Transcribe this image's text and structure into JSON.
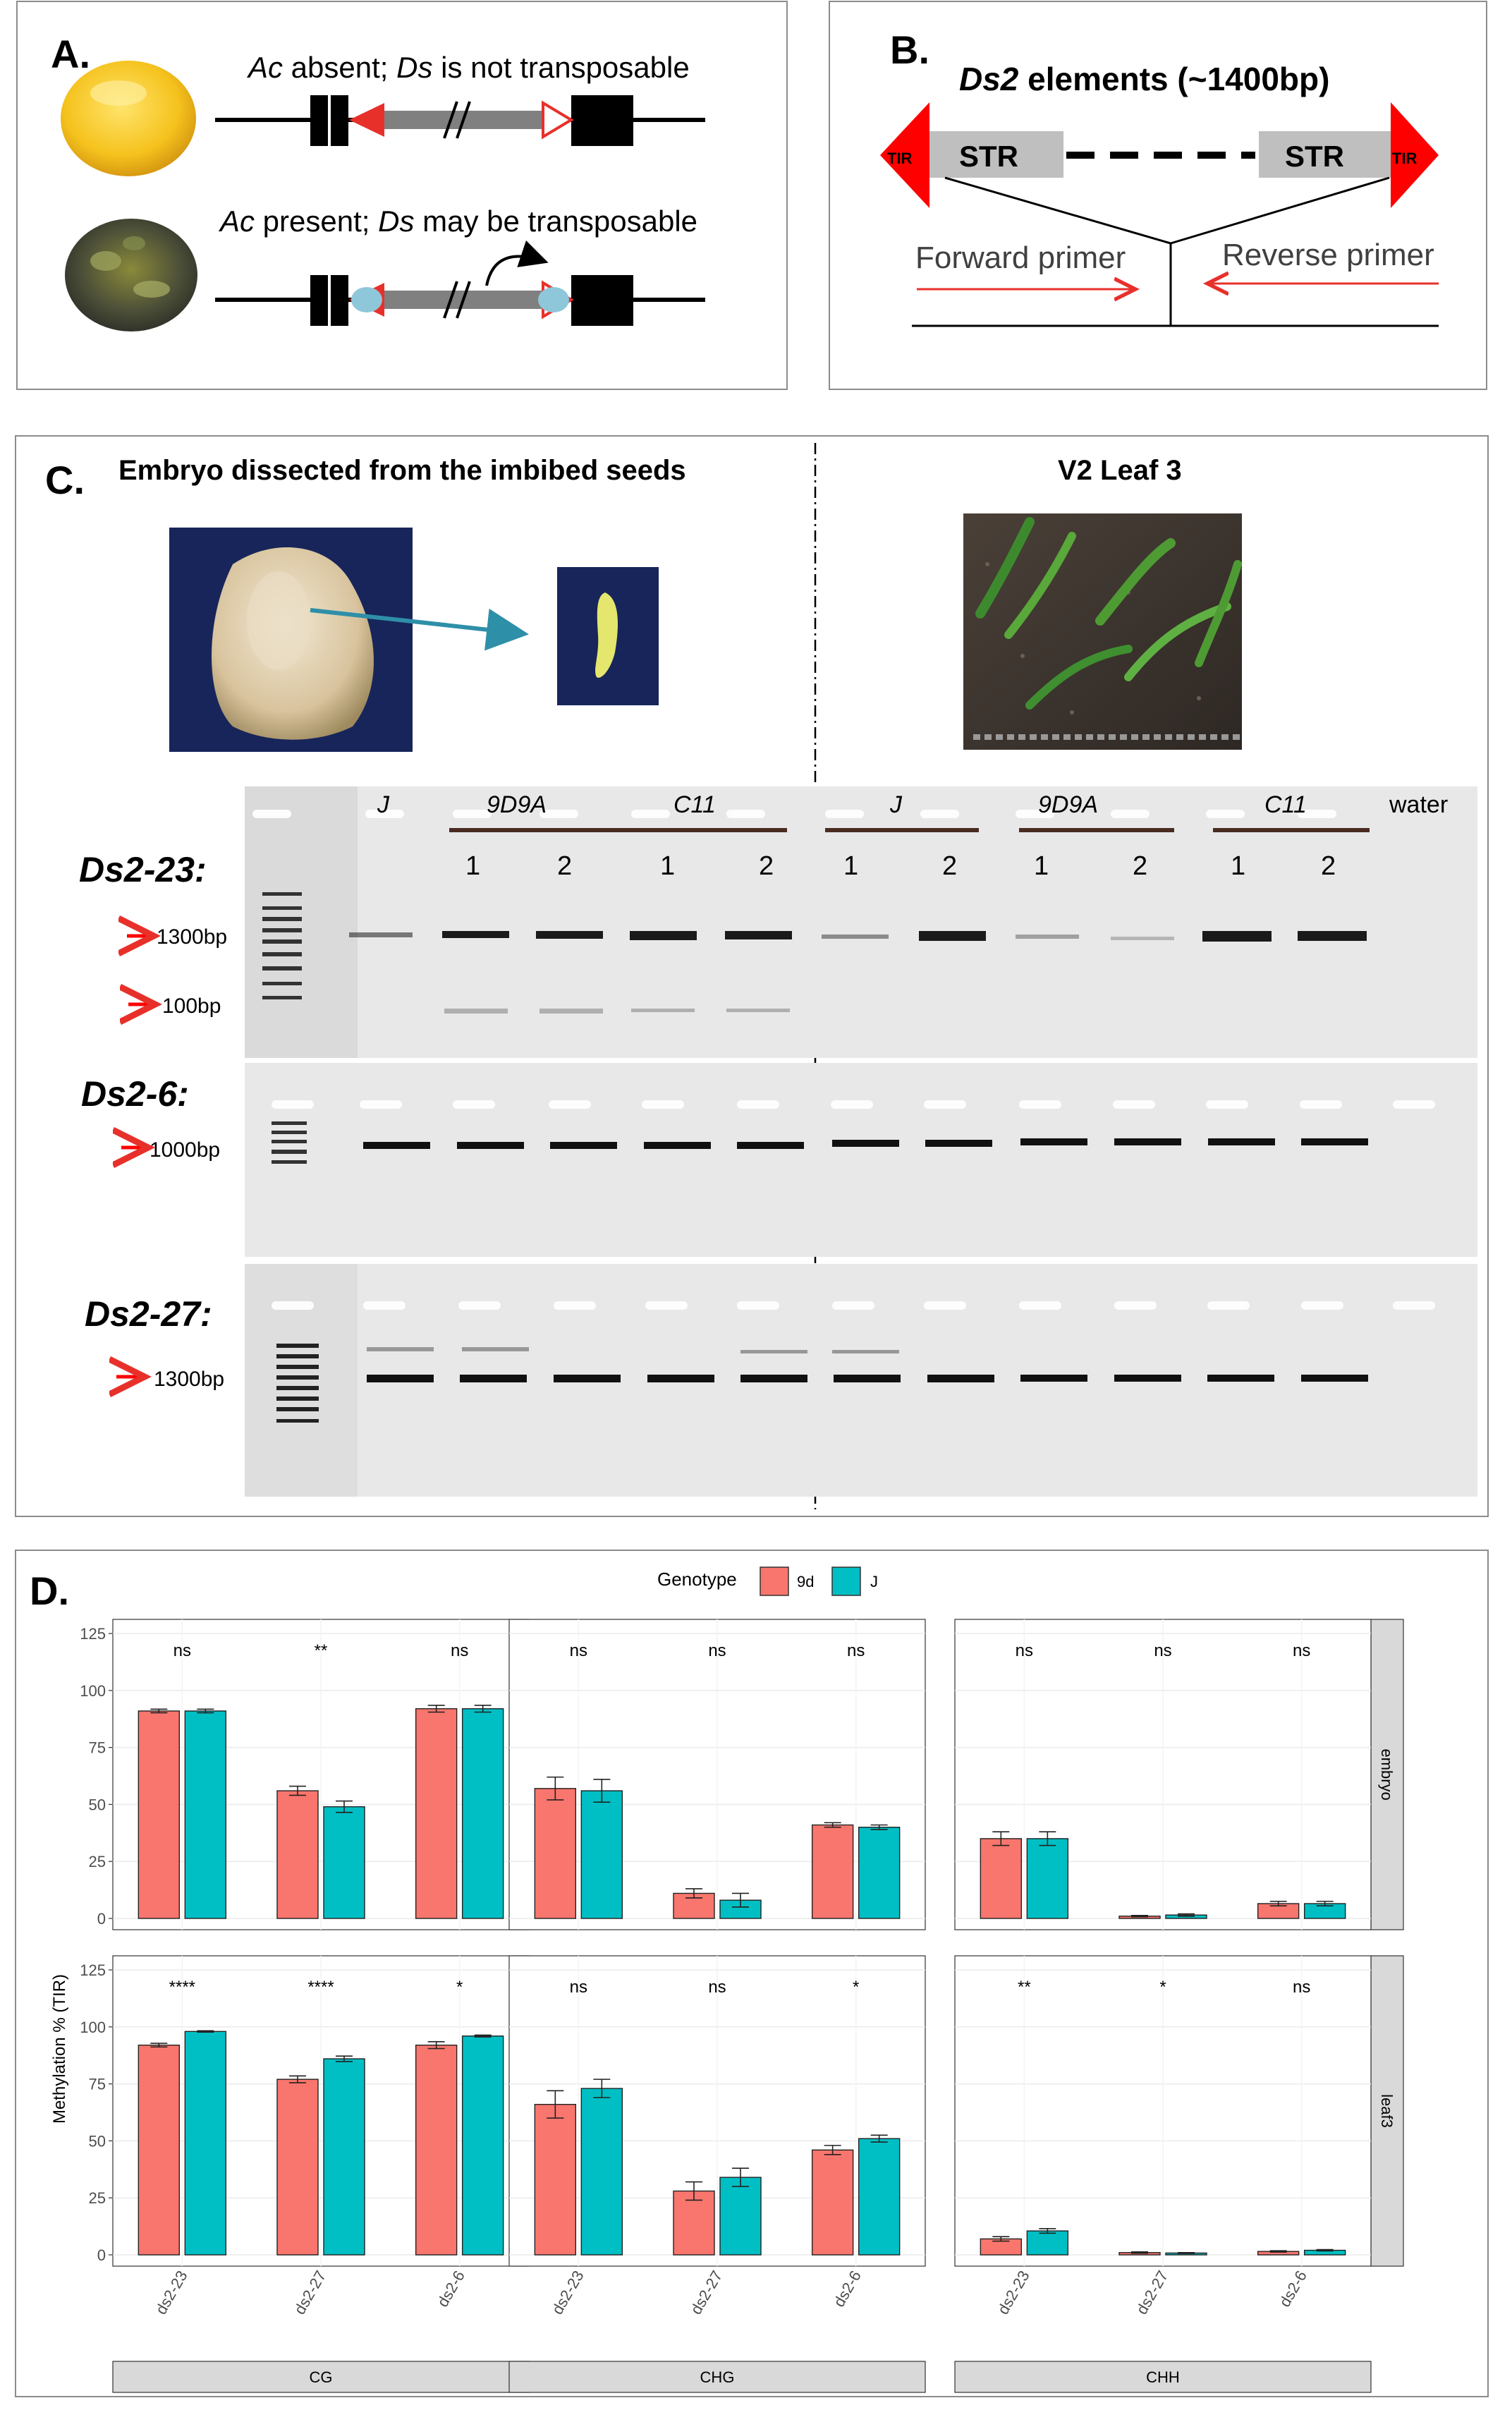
{
  "panel_a": {
    "label": "A.",
    "row1_italic": "Ac",
    "row1_rest": " absent; ",
    "row1_italic2": "Ds",
    "row1_rest2": " is not transposable",
    "row2_italic": "Ac",
    "row2_rest": " present; ",
    "row2_italic2": "Ds",
    "row2_rest2": " may be transposable"
  },
  "panel_b": {
    "label": "B.",
    "title_italic": "Ds2",
    "title_rest": " elements (~1400bp)",
    "tir": "TIR",
    "str": "STR",
    "forward": "Forward primer",
    "reverse": "Reverse primer"
  },
  "panel_c": {
    "label": "C.",
    "embryo_title": "Embryo dissected from the imbibed seeds",
    "leaf_title": "V2 Leaf 3",
    "lanes": {
      "j": "J",
      "g9d9a": "9D9A",
      "c11": "C11",
      "water": "water",
      "rep1": "1",
      "rep2": "2"
    },
    "gels": [
      {
        "name": "Ds2-23:",
        "markers": [
          "1300bp",
          "100bp"
        ]
      },
      {
        "name": "Ds2-6:",
        "markers": [
          "1000bp"
        ]
      },
      {
        "name": "Ds2-27:",
        "markers": [
          "1300bp"
        ]
      }
    ]
  },
  "panel_d": {
    "label": "D.",
    "legend_title": "Genotype",
    "ylabel": "Methylation % (TIR)",
    "colors": {
      "9d": "#F8766D",
      "J": "#00BFC4",
      "strip": "#D9D9D9"
    }
  },
  "chart_data": {
    "type": "bar",
    "series": [
      {
        "name": "9d"
      },
      {
        "name": "J"
      }
    ],
    "ylim": [
      0,
      125
    ],
    "yticks": [
      "0",
      "25",
      "50",
      "75",
      "100",
      "125"
    ],
    "categories": [
      "ds2-23",
      "ds2-27",
      "ds2-6"
    ],
    "contexts": [
      "CG",
      "CHG",
      "CHH"
    ],
    "tissues": [
      "embryo",
      "leaf3"
    ],
    "panels": [
      {
        "context": "CG",
        "tissue": "embryo",
        "values_9d": [
          91,
          56,
          92
        ],
        "values_J": [
          91,
          49,
          92
        ],
        "err_9d": [
          0.8,
          2,
          1.5
        ],
        "err_J": [
          0.8,
          2.5,
          1.5
        ],
        "signif": [
          "ns",
          "**",
          "ns"
        ]
      },
      {
        "context": "CHG",
        "tissue": "embryo",
        "values_9d": [
          57,
          11,
          41
        ],
        "values_J": [
          56,
          8,
          40
        ],
        "err_9d": [
          5,
          2,
          1
        ],
        "err_J": [
          5,
          3,
          1
        ],
        "signif": [
          "ns",
          "ns",
          "ns"
        ]
      },
      {
        "context": "CHH",
        "tissue": "embryo",
        "values_9d": [
          35,
          1,
          6.5
        ],
        "values_J": [
          35,
          1.5,
          6.5
        ],
        "err_9d": [
          3,
          0.3,
          1
        ],
        "err_J": [
          3,
          0.5,
          1
        ],
        "signif": [
          "ns",
          "ns",
          "ns"
        ]
      },
      {
        "context": "CG",
        "tissue": "leaf3",
        "values_9d": [
          92,
          77,
          92
        ],
        "values_J": [
          98,
          86,
          96
        ],
        "err_9d": [
          0.8,
          1.5,
          1.5
        ],
        "err_J": [
          0.3,
          1.2,
          0.4
        ],
        "signif": [
          "****",
          "****",
          "*"
        ]
      },
      {
        "context": "CHG",
        "tissue": "leaf3",
        "values_9d": [
          66,
          28,
          46
        ],
        "values_J": [
          73,
          34,
          51
        ],
        "err_9d": [
          6,
          4,
          2
        ],
        "err_J": [
          4,
          4,
          1.5
        ],
        "signif": [
          "ns",
          "ns",
          "*"
        ]
      },
      {
        "context": "CHH",
        "tissue": "leaf3",
        "values_9d": [
          7,
          1,
          1.5
        ],
        "values_J": [
          10.5,
          0.8,
          2
        ],
        "err_9d": [
          1,
          0.3,
          0.3
        ],
        "err_J": [
          1,
          0.2,
          0.3
        ],
        "signif": [
          "**",
          "*",
          "ns"
        ]
      }
    ]
  }
}
